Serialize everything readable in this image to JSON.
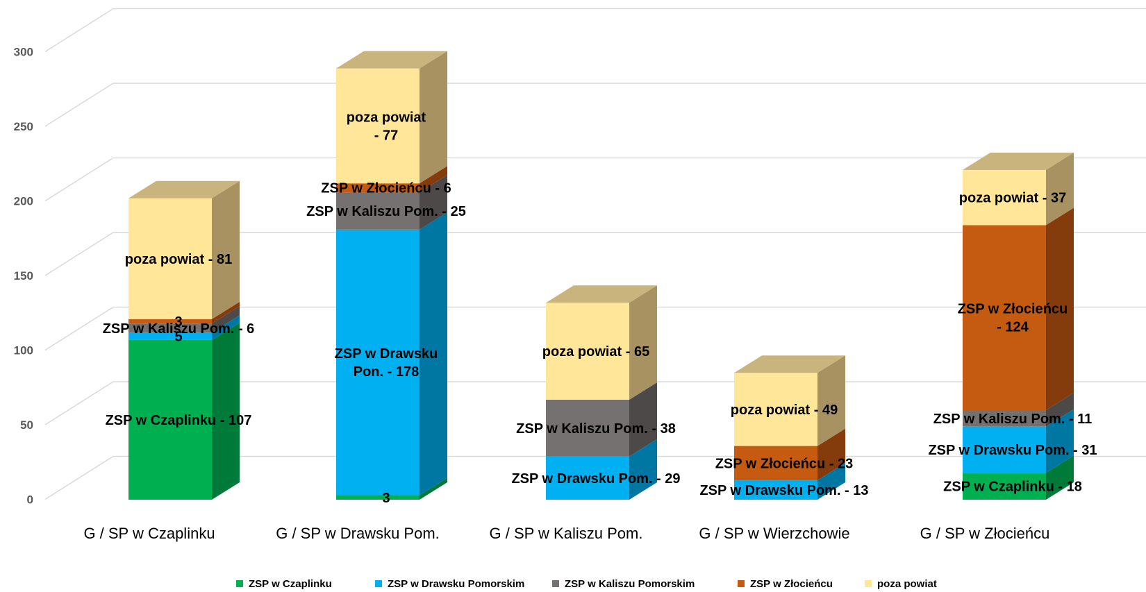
{
  "chart_data": {
    "type": "bar",
    "stacked": true,
    "three_d": true,
    "title": "",
    "xlabel": "",
    "ylabel": "",
    "ylim": [
      0,
      300
    ],
    "yticks": [
      "0",
      "50",
      "100",
      "150",
      "200",
      "250",
      "300"
    ],
    "grid": true,
    "legend_position": "bottom",
    "categories": [
      "G / SP w Czaplinku",
      "G / SP w Drawsku Pom.",
      "G / SP  w Kaliszu Pom.",
      "G / SP w  Wierzchowie",
      "G / SP w Złocieńcu"
    ],
    "series": [
      {
        "name": "ZSP w Czaplinku",
        "color": "#00b050",
        "side": "#007a38",
        "top": "#33c070",
        "values": [
          107,
          3,
          0,
          0,
          18
        ],
        "labels": [
          [
            "ZSP w Czaplinku - 107"
          ],
          [
            "3"
          ],
          null,
          null,
          [
            "ZSP w Czaplinku - 18"
          ]
        ]
      },
      {
        "name": "ZSP w Drawsku Pomorskim",
        "color": "#00b0f0",
        "side": "#0077a3",
        "top": "#40c4f4",
        "values": [
          5,
          178,
          29,
          13,
          31
        ],
        "labels": [
          [
            "5"
          ],
          [
            "ZSP w Drawsku",
            "Pon. - 178"
          ],
          [
            "ZSP w Drawsku Pom. - 29"
          ],
          [
            "ZSP w Drawsku Pom. - 13"
          ],
          [
            "ZSP w Drawsku Pom. - 31"
          ]
        ]
      },
      {
        "name": "ZSP w Kaliszu Pomorskim",
        "color": "#767171",
        "side": "#4d4949",
        "top": "#8f8b8b",
        "values": [
          6,
          25,
          38,
          0,
          11
        ],
        "labels": [
          [
            "ZSP w Kaliszu Pom. - 6"
          ],
          [
            "ZSP w Kaliszu Pom. - 25"
          ],
          [
            "ZSP w  Kaliszu Pom. - 38"
          ],
          null,
          [
            "ZSP w Kaliszu Pom. - 11"
          ]
        ]
      },
      {
        "name": "ZSP w Złocieńcu",
        "color": "#c55a11",
        "side": "#843c0c",
        "top": "#d47a3c",
        "values": [
          3,
          6,
          0,
          23,
          124
        ],
        "labels": [
          [
            "3"
          ],
          [
            "ZSP w Złocieńcu - 6"
          ],
          null,
          [
            "ZSP w Złocieńcu - 23"
          ],
          [
            "ZSP w Złocieńcu",
            "- 124"
          ]
        ]
      },
      {
        "name": "poza powiat",
        "color": "#ffe699",
        "side": "#a89262",
        "top": "#c9b47e",
        "values": [
          81,
          77,
          65,
          49,
          37
        ],
        "labels": [
          [
            "poza powiat - 81"
          ],
          [
            "poza powiat",
            "- 77"
          ],
          [
            "poza powiat - 65"
          ],
          [
            "poza powiat - 49"
          ],
          [
            "poza powiat - 37"
          ]
        ]
      }
    ]
  }
}
